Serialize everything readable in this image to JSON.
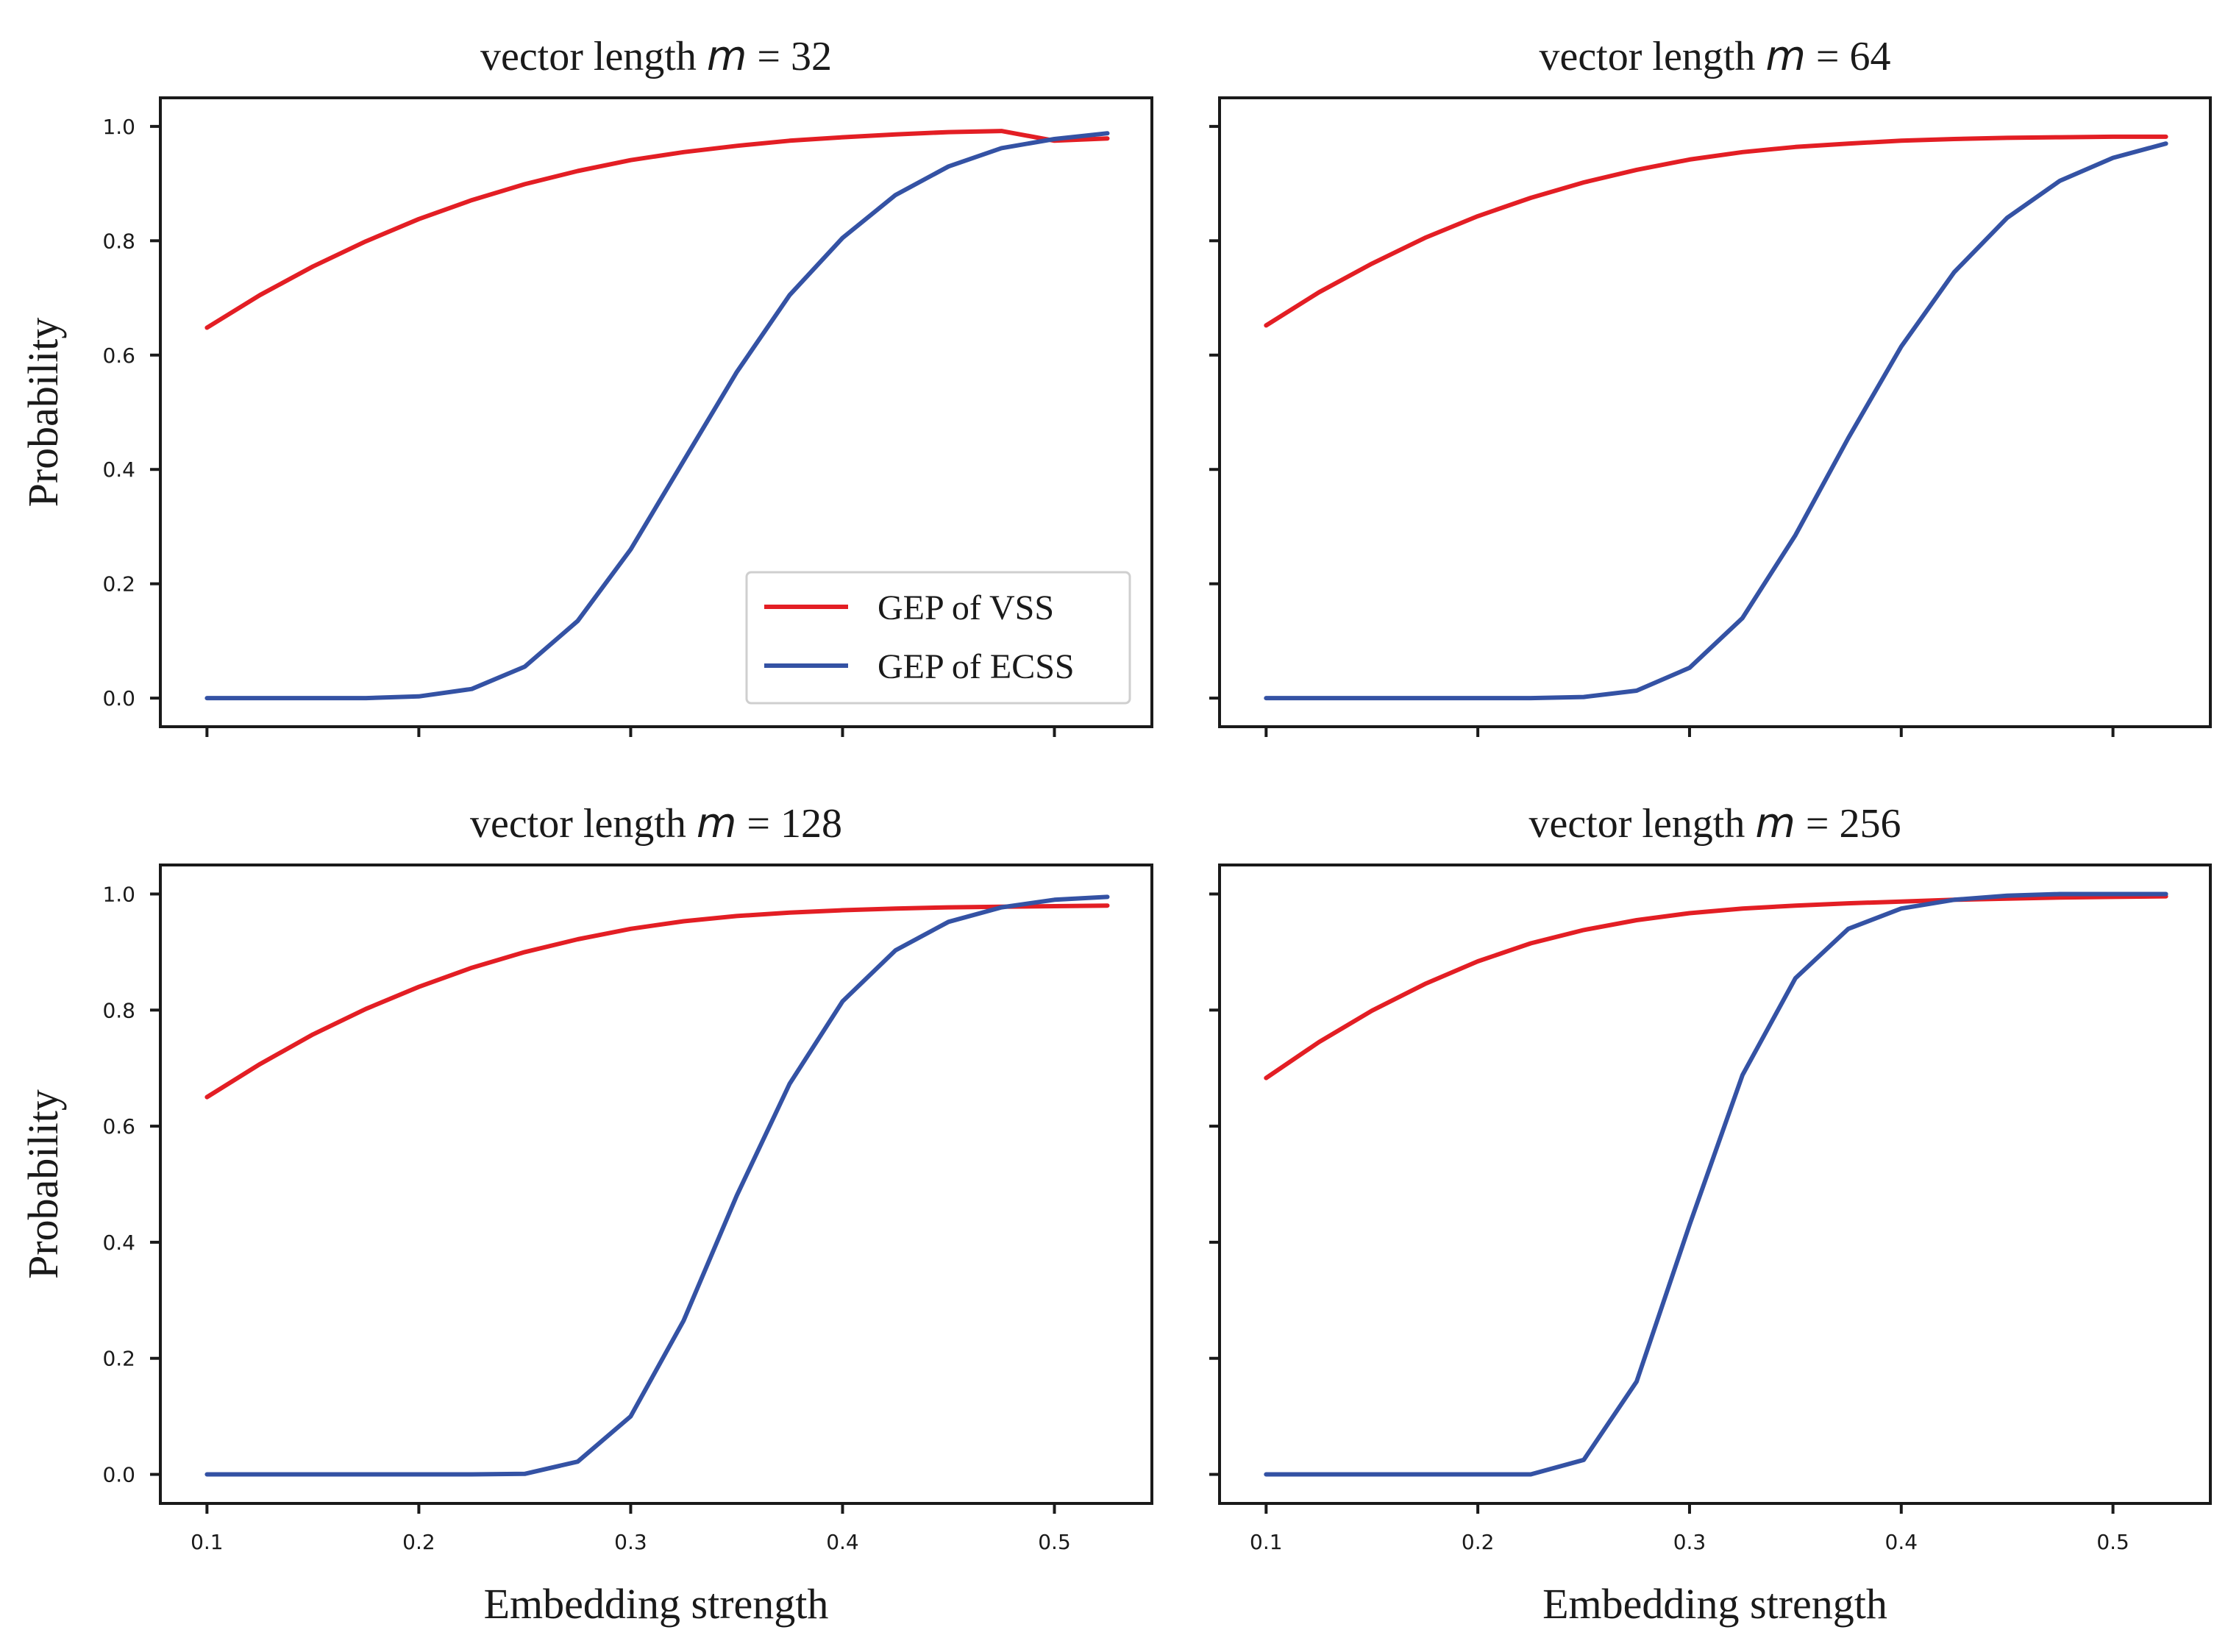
{
  "colors": {
    "vss": "#e31e24",
    "ecss": "#3452a4",
    "axis": "#1a1a1a"
  },
  "legend": {
    "location": "lower-right",
    "panel": 0,
    "entries": [
      "GEP of VSS",
      "GEP of ECSS"
    ]
  },
  "xlabel": "Embedding strength",
  "ylabel": "Probability",
  "chart_data": [
    {
      "type": "line",
      "title_prefix": "vector length ",
      "title_var": "m",
      "title_suffix": " = 32",
      "xlim": [
        0.078,
        0.546
      ],
      "ylim": [
        -0.05,
        1.05
      ],
      "xticks": [
        0.1,
        0.2,
        0.3,
        0.4,
        0.5
      ],
      "yticks": [
        0.0,
        0.2,
        0.4,
        0.6,
        0.8,
        1.0
      ],
      "x": [
        0.1,
        0.125,
        0.15,
        0.175,
        0.2,
        0.225,
        0.25,
        0.275,
        0.3,
        0.325,
        0.35,
        0.375,
        0.4,
        0.425,
        0.45,
        0.475,
        0.5,
        0.525
      ],
      "series": [
        {
          "name": "GEP of VSS",
          "color": "#e31e24",
          "values": [
            0.648,
            0.705,
            0.755,
            0.799,
            0.838,
            0.871,
            0.899,
            0.922,
            0.941,
            0.955,
            0.966,
            0.975,
            0.981,
            0.986,
            0.99,
            0.992,
            0.975,
            0.979
          ]
        },
        {
          "name": "GEP of ECSS",
          "color": "#3452a4",
          "values": [
            0.0,
            0.0,
            0.0,
            0.0,
            0.003,
            0.016,
            0.055,
            0.135,
            0.26,
            0.415,
            0.57,
            0.705,
            0.805,
            0.88,
            0.93,
            0.962,
            0.978,
            0.988
          ]
        }
      ]
    },
    {
      "type": "line",
      "title_prefix": "vector length ",
      "title_var": "m",
      "title_suffix": " = 64",
      "xlim": [
        0.078,
        0.546
      ],
      "ylim": [
        -0.05,
        1.05
      ],
      "xticks": [
        0.1,
        0.2,
        0.3,
        0.4,
        0.5
      ],
      "yticks": [
        0.0,
        0.2,
        0.4,
        0.6,
        0.8,
        1.0
      ],
      "x": [
        0.1,
        0.125,
        0.15,
        0.175,
        0.2,
        0.225,
        0.25,
        0.275,
        0.3,
        0.325,
        0.35,
        0.375,
        0.4,
        0.425,
        0.45,
        0.475,
        0.5,
        0.525
      ],
      "series": [
        {
          "name": "GEP of VSS",
          "color": "#e31e24",
          "values": [
            0.652,
            0.71,
            0.76,
            0.805,
            0.843,
            0.875,
            0.902,
            0.924,
            0.942,
            0.955,
            0.964,
            0.97,
            0.975,
            0.978,
            0.98,
            0.981,
            0.982,
            0.982
          ]
        },
        {
          "name": "GEP of ECSS",
          "color": "#3452a4",
          "values": [
            0.0,
            0.0,
            0.0,
            0.0,
            0.0,
            0.0,
            0.002,
            0.013,
            0.053,
            0.14,
            0.285,
            0.455,
            0.615,
            0.745,
            0.84,
            0.905,
            0.945,
            0.97
          ]
        }
      ]
    },
    {
      "type": "line",
      "title_prefix": "vector length ",
      "title_var": "m",
      "title_suffix": " = 128",
      "xlim": [
        0.078,
        0.546
      ],
      "ylim": [
        -0.05,
        1.05
      ],
      "xticks": [
        0.1,
        0.2,
        0.3,
        0.4,
        0.5
      ],
      "yticks": [
        0.0,
        0.2,
        0.4,
        0.6,
        0.8,
        1.0
      ],
      "x": [
        0.1,
        0.125,
        0.15,
        0.175,
        0.2,
        0.225,
        0.25,
        0.275,
        0.3,
        0.325,
        0.35,
        0.375,
        0.4,
        0.425,
        0.45,
        0.475,
        0.5,
        0.525
      ],
      "series": [
        {
          "name": "GEP of VSS",
          "color": "#e31e24",
          "values": [
            0.65,
            0.707,
            0.758,
            0.802,
            0.84,
            0.873,
            0.9,
            0.922,
            0.94,
            0.953,
            0.962,
            0.968,
            0.972,
            0.975,
            0.977,
            0.978,
            0.979,
            0.98
          ]
        },
        {
          "name": "GEP of ECSS",
          "color": "#3452a4",
          "values": [
            0.0,
            0.0,
            0.0,
            0.0,
            0.0,
            0.0,
            0.001,
            0.022,
            0.1,
            0.265,
            0.48,
            0.673,
            0.815,
            0.903,
            0.952,
            0.977,
            0.99,
            0.995
          ]
        }
      ]
    },
    {
      "type": "line",
      "title_prefix": "vector length ",
      "title_var": "m",
      "title_suffix": " = 256",
      "xlim": [
        0.078,
        0.546
      ],
      "ylim": [
        -0.05,
        1.05
      ],
      "xticks": [
        0.1,
        0.2,
        0.3,
        0.4,
        0.5
      ],
      "yticks": [
        0.0,
        0.2,
        0.4,
        0.6,
        0.8,
        1.0
      ],
      "x": [
        0.1,
        0.125,
        0.15,
        0.175,
        0.2,
        0.225,
        0.25,
        0.275,
        0.3,
        0.325,
        0.35,
        0.375,
        0.4,
        0.425,
        0.45,
        0.475,
        0.5,
        0.525
      ],
      "series": [
        {
          "name": "GEP of VSS",
          "color": "#e31e24",
          "values": [
            0.683,
            0.745,
            0.799,
            0.845,
            0.884,
            0.915,
            0.938,
            0.955,
            0.967,
            0.975,
            0.98,
            0.984,
            0.987,
            0.99,
            0.992,
            0.994,
            0.995,
            0.996
          ]
        },
        {
          "name": "GEP of ECSS",
          "color": "#3452a4",
          "values": [
            0.0,
            0.0,
            0.0,
            0.0,
            0.0,
            0.0,
            0.025,
            0.16,
            0.43,
            0.688,
            0.855,
            0.94,
            0.975,
            0.99,
            0.997,
            1.0,
            1.0,
            1.0
          ]
        }
      ]
    }
  ]
}
